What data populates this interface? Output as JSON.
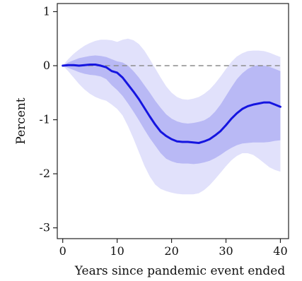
{
  "chart_data": {
    "type": "line",
    "title": "",
    "xlabel": "Years since pandemic event ended",
    "ylabel": "Percent",
    "xlim": [
      -1,
      41.5
    ],
    "ylim": [
      -3.2,
      1.15
    ],
    "xticks": [
      0,
      10,
      20,
      30,
      40
    ],
    "yticks": [
      1,
      0,
      -1,
      -2,
      -3
    ],
    "xtick_labels": [
      "0",
      "10",
      "20",
      "30",
      "40"
    ],
    "ytick_labels": [
      "1",
      "0",
      "-1",
      "-2",
      "-3"
    ],
    "grid": false,
    "legend": "none",
    "reference_line": {
      "y": 0,
      "style": "dashed",
      "color": "#8c8c8c"
    },
    "colors": {
      "line": "#1515e0",
      "inner_band": "#b9b9f5",
      "outer_band": "#e1e1fb"
    },
    "x": [
      0,
      1,
      2,
      3,
      4,
      5,
      6,
      7,
      8,
      9,
      10,
      11,
      12,
      13,
      14,
      15,
      16,
      17,
      18,
      19,
      20,
      21,
      22,
      23,
      24,
      25,
      26,
      27,
      28,
      29,
      30,
      31,
      32,
      33,
      34,
      35,
      36,
      37,
      38,
      39,
      40
    ],
    "series": [
      {
        "values": [
          0.0,
          0.01,
          0.01,
          0.0,
          0.01,
          0.02,
          0.02,
          0.0,
          -0.03,
          -0.1,
          -0.13,
          -0.22,
          -0.35,
          -0.48,
          -0.62,
          -0.78,
          -0.94,
          -1.09,
          -1.22,
          -1.3,
          -1.36,
          -1.4,
          -1.41,
          -1.41,
          -1.42,
          -1.43,
          -1.4,
          -1.36,
          -1.29,
          -1.21,
          -1.1,
          -0.98,
          -0.88,
          -0.8,
          -0.75,
          -0.72,
          -0.7,
          -0.68,
          -0.68,
          -0.72,
          -0.76
        ]
      }
    ],
    "bands": [
      {
        "level": "outer",
        "upper": [
          0.0,
          0.12,
          0.22,
          0.3,
          0.37,
          0.42,
          0.46,
          0.48,
          0.48,
          0.47,
          0.44,
          0.48,
          0.5,
          0.47,
          0.4,
          0.28,
          0.12,
          -0.05,
          -0.22,
          -0.38,
          -0.5,
          -0.58,
          -0.62,
          -0.63,
          -0.61,
          -0.58,
          -0.52,
          -0.44,
          -0.33,
          -0.2,
          -0.06,
          0.07,
          0.17,
          0.23,
          0.27,
          0.28,
          0.28,
          0.27,
          0.24,
          0.2,
          0.16
        ],
        "lower": [
          0.0,
          -0.1,
          -0.22,
          -0.34,
          -0.44,
          -0.52,
          -0.58,
          -0.62,
          -0.65,
          -0.72,
          -0.8,
          -0.92,
          -1.12,
          -1.35,
          -1.6,
          -1.85,
          -2.05,
          -2.2,
          -2.28,
          -2.32,
          -2.35,
          -2.37,
          -2.38,
          -2.38,
          -2.38,
          -2.36,
          -2.3,
          -2.21,
          -2.1,
          -1.98,
          -1.86,
          -1.75,
          -1.67,
          -1.62,
          -1.62,
          -1.65,
          -1.72,
          -1.8,
          -1.88,
          -1.93,
          -1.96
        ]
      },
      {
        "level": "inner",
        "upper": [
          0.0,
          0.06,
          0.1,
          0.14,
          0.16,
          0.18,
          0.19,
          0.18,
          0.16,
          0.12,
          0.08,
          0.06,
          0.0,
          -0.1,
          -0.22,
          -0.36,
          -0.5,
          -0.65,
          -0.78,
          -0.9,
          -0.98,
          -1.03,
          -1.06,
          -1.07,
          -1.06,
          -1.04,
          -1.01,
          -0.95,
          -0.85,
          -0.72,
          -0.56,
          -0.4,
          -0.25,
          -0.14,
          -0.06,
          -0.01,
          0.01,
          0.0,
          -0.02,
          -0.06,
          -0.1
        ],
        "lower": [
          0.0,
          -0.04,
          -0.08,
          -0.12,
          -0.15,
          -0.17,
          -0.18,
          -0.2,
          -0.25,
          -0.36,
          -0.45,
          -0.56,
          -0.7,
          -0.85,
          -1.01,
          -1.18,
          -1.34,
          -1.48,
          -1.62,
          -1.72,
          -1.77,
          -1.8,
          -1.81,
          -1.81,
          -1.82,
          -1.81,
          -1.79,
          -1.76,
          -1.71,
          -1.65,
          -1.58,
          -1.52,
          -1.47,
          -1.44,
          -1.43,
          -1.42,
          -1.42,
          -1.42,
          -1.41,
          -1.39,
          -1.38
        ]
      }
    ]
  }
}
